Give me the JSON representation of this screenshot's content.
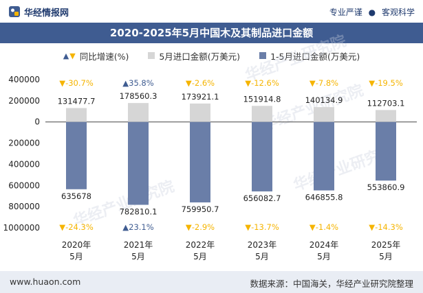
{
  "header": {
    "brand": "华经情报网",
    "tag1": "专业严谨",
    "tag_sep": "●",
    "tag2": "客观科学"
  },
  "chart_title": "2020-2025年5月中国木及其制品进口金额",
  "legend": {
    "growth": "同比增速(%)",
    "may": "5月进口金额(万美元)",
    "cumulative": "1-5月进口金额(万美元)"
  },
  "watermark": "华经产业研究院",
  "footer": {
    "site": "www.huaon.com",
    "source": "数据来源：中国海关，华经产业研究院整理"
  },
  "colors": {
    "may_bar": "#d6d6d6",
    "cum_bar": "#6a7ea8",
    "up": "#3f5c91",
    "down": "#f5b400",
    "title_bg": "#3f5c91"
  },
  "chart_data": {
    "type": "bar",
    "categories": [
      "2020年\n5月",
      "2021年\n5月",
      "2022年\n5月",
      "2023年\n5月",
      "2024年\n5月",
      "2025年\n5月"
    ],
    "series": [
      {
        "name": "5月进口金额(万美元)",
        "values": [
          131477.7,
          178560.3,
          173921.1,
          151914.8,
          140134.9,
          112703.1
        ],
        "labels": [
          "131477.7",
          "178560.3",
          "173921.1",
          "151914.8",
          "140134.9",
          "112703.1"
        ],
        "growth": [
          "▼-30.7%",
          "▲35.8%",
          "▼-2.6%",
          "▼-12.6%",
          "▼-7.8%",
          "▼-19.5%"
        ],
        "growth_dir": [
          "down",
          "up",
          "down",
          "down",
          "down",
          "down"
        ]
      },
      {
        "name": "1-5月进口金额(万美元)",
        "values": [
          -635678,
          -782810.1,
          -759950.7,
          -656082.7,
          -646855.8,
          -553860.9
        ],
        "labels": [
          "635678",
          "782810.1",
          "759950.7",
          "656082.7",
          "646855.8",
          "553860.9"
        ],
        "growth": [
          "▼-24.3%",
          "▲23.1%",
          "▼-2.9%",
          "▼-13.7%",
          "▼-1.4%",
          "▼-14.3%"
        ],
        "growth_dir": [
          "down",
          "up",
          "down",
          "down",
          "down",
          "down"
        ]
      }
    ],
    "yticks": [
      400000,
      200000,
      0,
      -200000,
      -400000,
      -600000,
      -800000,
      -1000000
    ],
    "ytick_labels": [
      "400000",
      "200000",
      "0",
      "200000",
      "400000",
      "600000",
      "800000",
      "1000000"
    ],
    "ylim": [
      -1000000,
      400000
    ]
  }
}
